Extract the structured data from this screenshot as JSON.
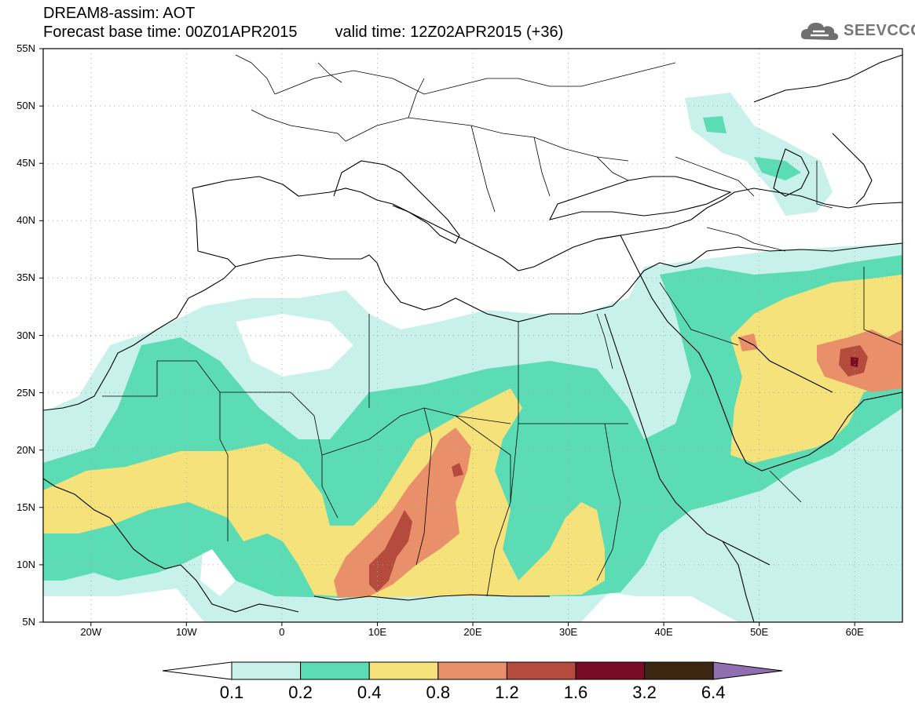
{
  "header": {
    "line1": "DREAM8-assim: AOT",
    "base": "Forecast base time: 00Z01APR2015",
    "valid": "valid time: 12Z02APR2015 (+36)"
  },
  "logo": {
    "text": "SEEVCCC",
    "icon": "cloud-logo-icon",
    "color": "#777777"
  },
  "axes": {
    "lat_labels": [
      "55N",
      "50N",
      "45N",
      "40N",
      "35N",
      "30N",
      "25N",
      "20N",
      "15N",
      "10N",
      "5N"
    ],
    "lon_labels": [
      "20W",
      "10W",
      "0",
      "10E",
      "20E",
      "30E",
      "40E",
      "50E",
      "60E"
    ],
    "lat_range": [
      5,
      55
    ],
    "lon_range": [
      -25,
      65
    ],
    "grid": "dotted"
  },
  "legend": {
    "thresholds": [
      "0.1",
      "0.2",
      "0.4",
      "0.8",
      "1.2",
      "1.6",
      "3.2",
      "6.4"
    ],
    "colors": [
      "#c7f1ea",
      "#5cdcb4",
      "#f6e27a",
      "#e9906a",
      "#b54b3c",
      "#7a0b27",
      "#3d2611",
      "#8f6fb0"
    ]
  }
}
